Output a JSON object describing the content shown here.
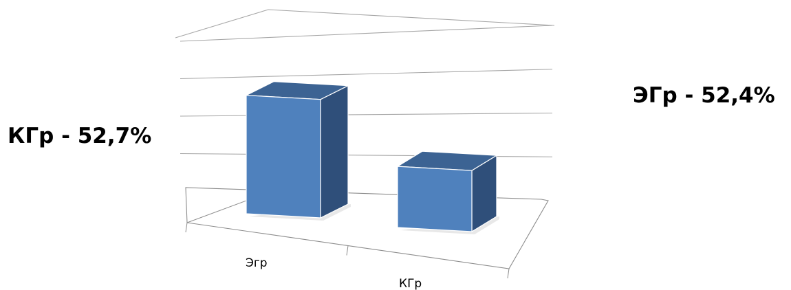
{
  "chart_data": {
    "type": "bar",
    "style": "3d-column",
    "categories": [
      "Эгр",
      "КГр"
    ],
    "values": [
      100,
      55
    ],
    "ylim": [
      0,
      130
    ],
    "grid": true,
    "legend": "none",
    "title": "",
    "xlabel": "",
    "ylabel": ""
  },
  "annotations": {
    "left": "КГр - 52,7%",
    "right": "ЭГр - 52,4%"
  },
  "colors": {
    "bar_front": "#4f81bd",
    "bar_side": "#2f4f7a",
    "bar_top": "#3c6393",
    "grid": "#a6a6a6",
    "axis": "#8c8c8c"
  }
}
